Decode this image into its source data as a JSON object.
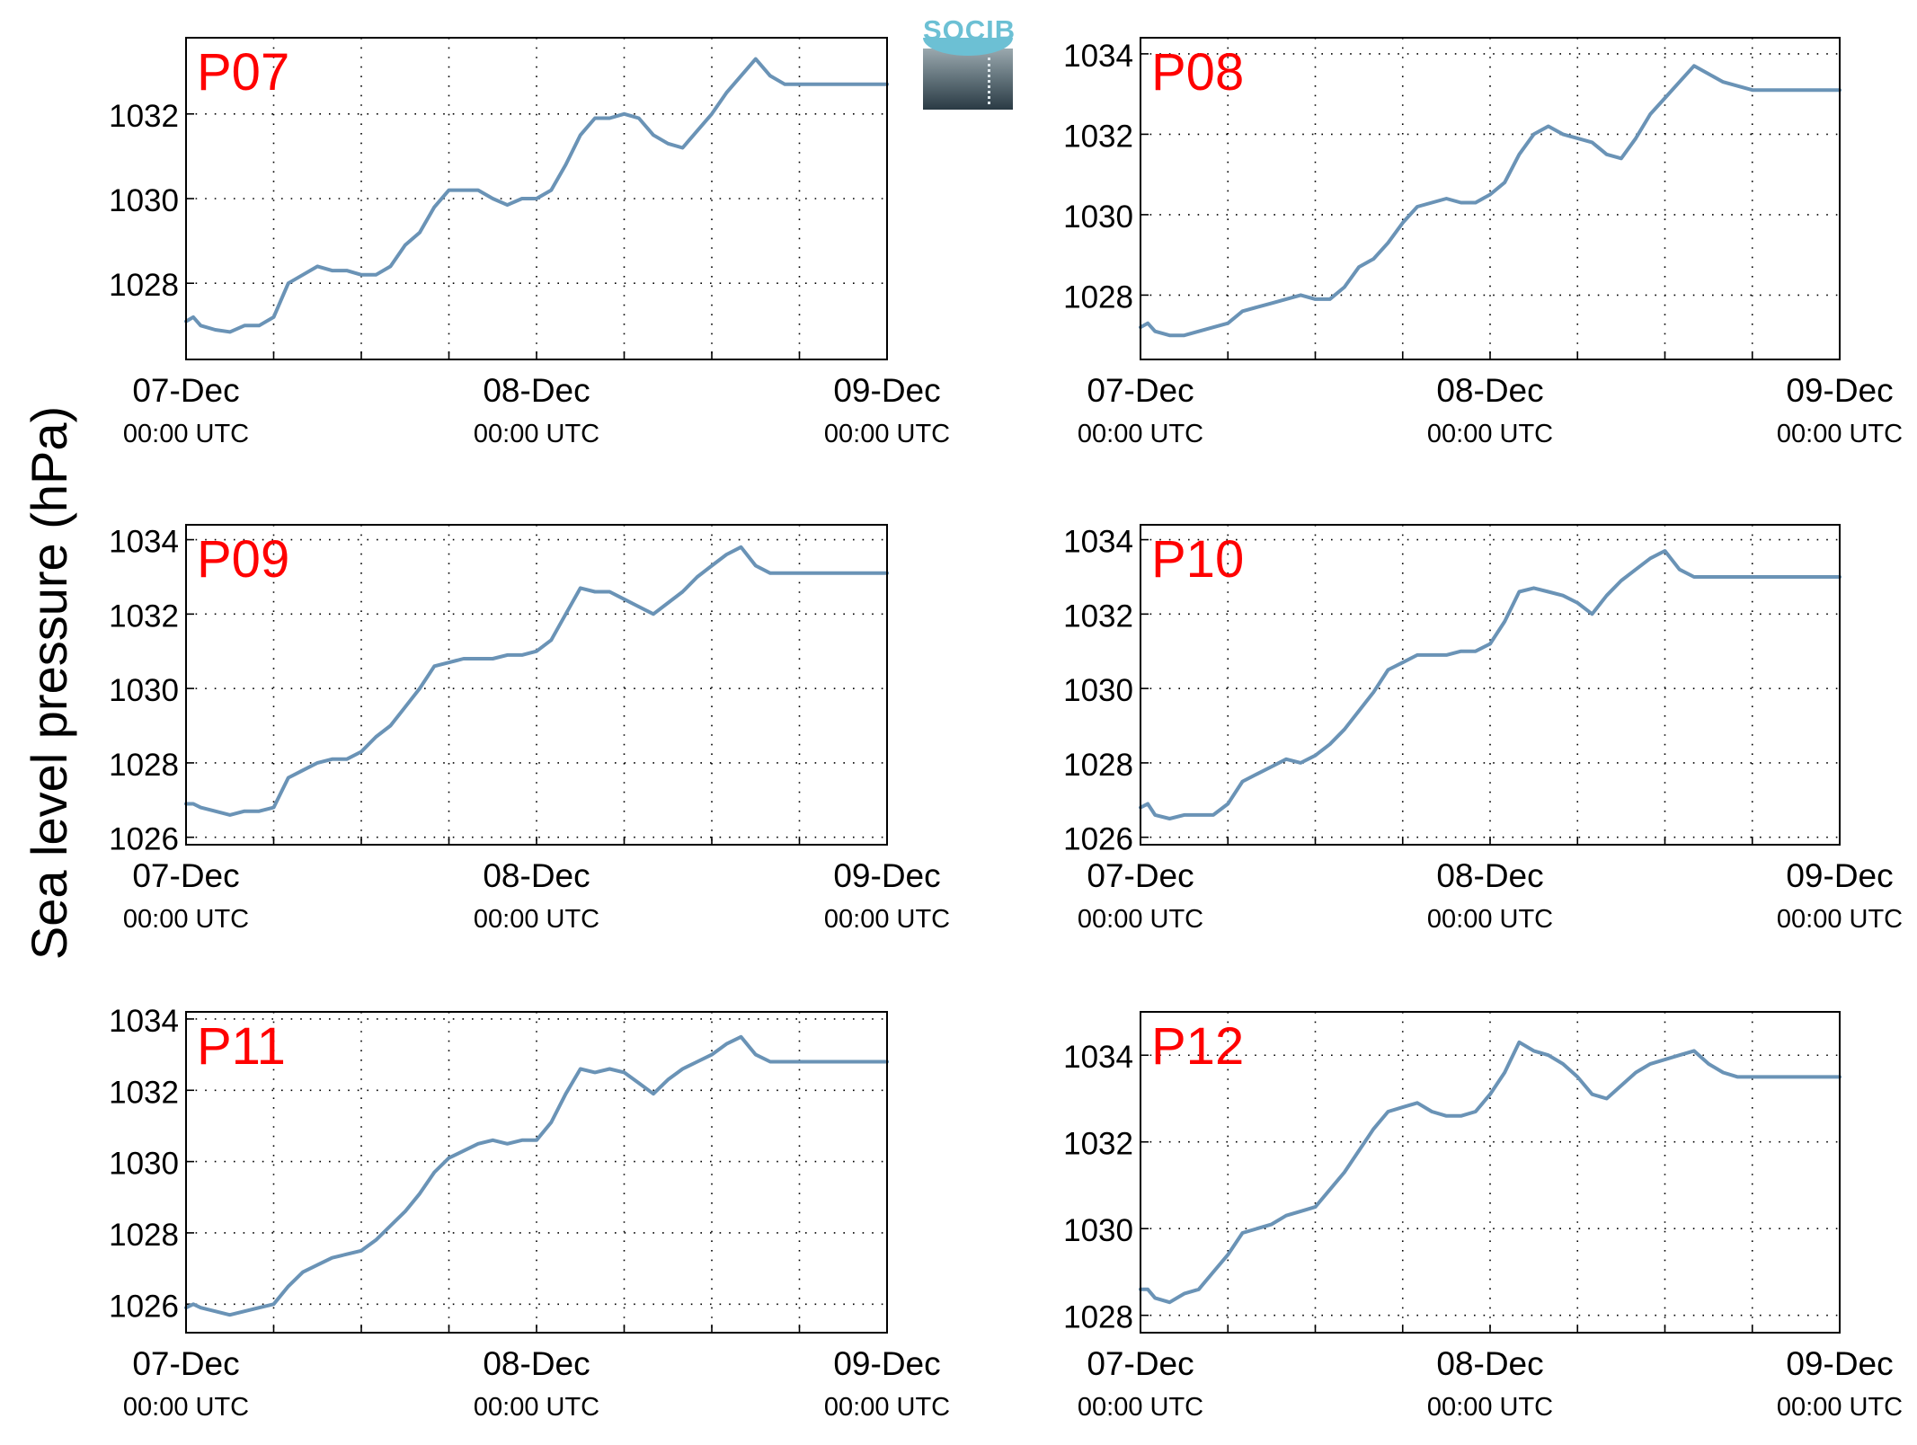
{
  "ylabel": "Sea level pressure (hPa)",
  "logo": {
    "text": "SOCIB"
  },
  "colors": {
    "line": "#6a93b6",
    "panel_label": "#ff0000",
    "grid": "#000000",
    "logo_accent": "#6cc0d4"
  },
  "chart_data": [
    {
      "type": "line",
      "name": "P07",
      "x_ticks": [
        {
          "top": "07-Dec",
          "bottom": "00:00 UTC"
        },
        {
          "top": "08-Dec",
          "bottom": "00:00 UTC"
        },
        {
          "top": "09-Dec",
          "bottom": "00:00 UTC"
        }
      ],
      "y_ticks": [
        1028,
        1030,
        1032
      ],
      "ylim": [
        1026.2,
        1033.8
      ],
      "x_range_hours": [
        0,
        48
      ],
      "grid": true,
      "hours": [
        0,
        0.5,
        1,
        2,
        3,
        4,
        5,
        6,
        7,
        8,
        9,
        10,
        11,
        12,
        13,
        14,
        15,
        16,
        17,
        18,
        19,
        20,
        21,
        22,
        23,
        24,
        25,
        26,
        27,
        28,
        29,
        30,
        31,
        32,
        33,
        34,
        35,
        36,
        37,
        38,
        39,
        40,
        41,
        42,
        43,
        44,
        45,
        46,
        47,
        48
      ],
      "values": [
        1027.1,
        1027.2,
        1027.0,
        1026.9,
        1026.85,
        1027.0,
        1027.0,
        1027.2,
        1028.0,
        1028.2,
        1028.4,
        1028.3,
        1028.3,
        1028.2,
        1028.2,
        1028.4,
        1028.9,
        1029.2,
        1029.8,
        1030.2,
        1030.2,
        1030.2,
        1030.0,
        1029.85,
        1030.0,
        1030.0,
        1030.2,
        1030.8,
        1031.5,
        1031.9,
        1031.9,
        1032.0,
        1031.9,
        1031.5,
        1031.3,
        1031.2,
        1031.6,
        1032.0,
        1032.5,
        1032.9,
        1033.3,
        1032.9,
        1032.7,
        1032.7,
        1032.7,
        1032.7,
        1032.7,
        1032.7,
        1032.7,
        1032.7
      ]
    },
    {
      "type": "line",
      "name": "P08",
      "x_ticks": [
        {
          "top": "07-Dec",
          "bottom": "00:00 UTC"
        },
        {
          "top": "08-Dec",
          "bottom": "00:00 UTC"
        },
        {
          "top": "09-Dec",
          "bottom": "00:00 UTC"
        }
      ],
      "y_ticks": [
        1028,
        1030,
        1032,
        1034
      ],
      "ylim": [
        1026.4,
        1034.4
      ],
      "x_range_hours": [
        0,
        48
      ],
      "grid": true,
      "hours": [
        0,
        0.5,
        1,
        2,
        3,
        4,
        5,
        6,
        7,
        8,
        9,
        10,
        11,
        12,
        13,
        14,
        15,
        16,
        17,
        18,
        19,
        20,
        21,
        22,
        23,
        24,
        25,
        26,
        27,
        28,
        29,
        30,
        31,
        32,
        33,
        34,
        35,
        36,
        37,
        38,
        39,
        40,
        41,
        42,
        43,
        44,
        45,
        46,
        47,
        48
      ],
      "values": [
        1027.2,
        1027.3,
        1027.1,
        1027.0,
        1027.0,
        1027.1,
        1027.2,
        1027.3,
        1027.6,
        1027.7,
        1027.8,
        1027.9,
        1028.0,
        1027.9,
        1027.9,
        1028.2,
        1028.7,
        1028.9,
        1029.3,
        1029.8,
        1030.2,
        1030.3,
        1030.4,
        1030.3,
        1030.3,
        1030.5,
        1030.8,
        1031.5,
        1032.0,
        1032.2,
        1032.0,
        1031.9,
        1031.8,
        1031.5,
        1031.4,
        1031.9,
        1032.5,
        1032.9,
        1033.3,
        1033.7,
        1033.5,
        1033.3,
        1033.2,
        1033.1,
        1033.1,
        1033.1,
        1033.1,
        1033.1,
        1033.1,
        1033.1
      ]
    },
    {
      "type": "line",
      "name": "P09",
      "x_ticks": [
        {
          "top": "07-Dec",
          "bottom": "00:00 UTC"
        },
        {
          "top": "08-Dec",
          "bottom": "00:00 UTC"
        },
        {
          "top": "09-Dec",
          "bottom": "00:00 UTC"
        }
      ],
      "y_ticks": [
        1026,
        1028,
        1030,
        1032,
        1034
      ],
      "ylim": [
        1025.8,
        1034.4
      ],
      "x_range_hours": [
        0,
        48
      ],
      "grid": true,
      "hours": [
        0,
        0.5,
        1,
        2,
        3,
        4,
        5,
        6,
        7,
        8,
        9,
        10,
        11,
        12,
        13,
        14,
        15,
        16,
        17,
        18,
        19,
        20,
        21,
        22,
        23,
        24,
        25,
        26,
        27,
        28,
        29,
        30,
        31,
        32,
        33,
        34,
        35,
        36,
        37,
        38,
        39,
        40,
        41,
        42,
        43,
        44,
        45,
        46,
        47,
        48
      ],
      "values": [
        1026.9,
        1026.9,
        1026.8,
        1026.7,
        1026.6,
        1026.7,
        1026.7,
        1026.8,
        1027.6,
        1027.8,
        1028.0,
        1028.1,
        1028.1,
        1028.3,
        1028.7,
        1029.0,
        1029.5,
        1030.0,
        1030.6,
        1030.7,
        1030.8,
        1030.8,
        1030.8,
        1030.9,
        1030.9,
        1031.0,
        1031.3,
        1032.0,
        1032.7,
        1032.6,
        1032.6,
        1032.4,
        1032.2,
        1032.0,
        1032.3,
        1032.6,
        1033.0,
        1033.3,
        1033.6,
        1033.8,
        1033.3,
        1033.1,
        1033.1,
        1033.1,
        1033.1,
        1033.1,
        1033.1,
        1033.1,
        1033.1,
        1033.1
      ]
    },
    {
      "type": "line",
      "name": "P10",
      "x_ticks": [
        {
          "top": "07-Dec",
          "bottom": "00:00 UTC"
        },
        {
          "top": "08-Dec",
          "bottom": "00:00 UTC"
        },
        {
          "top": "09-Dec",
          "bottom": "00:00 UTC"
        }
      ],
      "y_ticks": [
        1026,
        1028,
        1030,
        1032,
        1034
      ],
      "ylim": [
        1025.8,
        1034.4
      ],
      "x_range_hours": [
        0,
        48
      ],
      "grid": true,
      "hours": [
        0,
        0.5,
        1,
        2,
        3,
        4,
        5,
        6,
        7,
        8,
        9,
        10,
        11,
        12,
        13,
        14,
        15,
        16,
        17,
        18,
        19,
        20,
        21,
        22,
        23,
        24,
        25,
        26,
        27,
        28,
        29,
        30,
        31,
        32,
        33,
        34,
        35,
        36,
        37,
        38,
        39,
        40,
        41,
        42,
        43,
        44,
        45,
        46,
        47,
        48
      ],
      "values": [
        1026.8,
        1026.9,
        1026.6,
        1026.5,
        1026.6,
        1026.6,
        1026.6,
        1026.9,
        1027.5,
        1027.7,
        1027.9,
        1028.1,
        1028.0,
        1028.2,
        1028.5,
        1028.9,
        1029.4,
        1029.9,
        1030.5,
        1030.7,
        1030.9,
        1030.9,
        1030.9,
        1031.0,
        1031.0,
        1031.2,
        1031.8,
        1032.6,
        1032.7,
        1032.6,
        1032.5,
        1032.3,
        1032.0,
        1032.5,
        1032.9,
        1033.2,
        1033.5,
        1033.7,
        1033.2,
        1033.0,
        1033.0,
        1033.0,
        1033.0,
        1033.0,
        1033.0,
        1033.0,
        1033.0,
        1033.0,
        1033.0,
        1033.0
      ]
    },
    {
      "type": "line",
      "name": "P11",
      "x_ticks": [
        {
          "top": "07-Dec",
          "bottom": "00:00 UTC"
        },
        {
          "top": "08-Dec",
          "bottom": "00:00 UTC"
        },
        {
          "top": "09-Dec",
          "bottom": "00:00 UTC"
        }
      ],
      "y_ticks": [
        1026,
        1028,
        1030,
        1032,
        1034
      ],
      "ylim": [
        1025.2,
        1034.2
      ],
      "x_range_hours": [
        0,
        48
      ],
      "grid": true,
      "hours": [
        0,
        0.5,
        1,
        2,
        3,
        4,
        5,
        6,
        7,
        8,
        9,
        10,
        11,
        12,
        13,
        14,
        15,
        16,
        17,
        18,
        19,
        20,
        21,
        22,
        23,
        24,
        25,
        26,
        27,
        28,
        29,
        30,
        31,
        32,
        33,
        34,
        35,
        36,
        37,
        38,
        39,
        40,
        41,
        42,
        43,
        44,
        45,
        46,
        47,
        48
      ],
      "values": [
        1025.9,
        1026.0,
        1025.9,
        1025.8,
        1025.7,
        1025.8,
        1025.9,
        1026.0,
        1026.5,
        1026.9,
        1027.1,
        1027.3,
        1027.4,
        1027.5,
        1027.8,
        1028.2,
        1028.6,
        1029.1,
        1029.7,
        1030.1,
        1030.3,
        1030.5,
        1030.6,
        1030.5,
        1030.6,
        1030.6,
        1031.1,
        1031.9,
        1032.6,
        1032.5,
        1032.6,
        1032.5,
        1032.2,
        1031.9,
        1032.3,
        1032.6,
        1032.8,
        1033.0,
        1033.3,
        1033.5,
        1033.0,
        1032.8,
        1032.8,
        1032.8,
        1032.8,
        1032.8,
        1032.8,
        1032.8,
        1032.8,
        1032.8
      ]
    },
    {
      "type": "line",
      "name": "P12",
      "x_ticks": [
        {
          "top": "07-Dec",
          "bottom": "00:00 UTC"
        },
        {
          "top": "08-Dec",
          "bottom": "00:00 UTC"
        },
        {
          "top": "09-Dec",
          "bottom": "00:00 UTC"
        }
      ],
      "y_ticks": [
        1028,
        1030,
        1032,
        1034
      ],
      "ylim": [
        1027.6,
        1035.0
      ],
      "x_range_hours": [
        0,
        48
      ],
      "grid": true,
      "hours": [
        0,
        0.5,
        1,
        2,
        3,
        4,
        5,
        6,
        7,
        8,
        9,
        10,
        11,
        12,
        13,
        14,
        15,
        16,
        17,
        18,
        19,
        20,
        21,
        22,
        23,
        24,
        25,
        26,
        27,
        28,
        29,
        30,
        31,
        32,
        33,
        34,
        35,
        36,
        37,
        38,
        39,
        40,
        41,
        42,
        43,
        44,
        45,
        46,
        47,
        48
      ],
      "values": [
        1028.6,
        1028.6,
        1028.4,
        1028.3,
        1028.5,
        1028.6,
        1029.0,
        1029.4,
        1029.9,
        1030.0,
        1030.1,
        1030.3,
        1030.4,
        1030.5,
        1030.9,
        1031.3,
        1031.8,
        1032.3,
        1032.7,
        1032.8,
        1032.9,
        1032.7,
        1032.6,
        1032.6,
        1032.7,
        1033.1,
        1033.6,
        1034.3,
        1034.1,
        1034.0,
        1033.8,
        1033.5,
        1033.1,
        1033.0,
        1033.3,
        1033.6,
        1033.8,
        1033.9,
        1034.0,
        1034.1,
        1033.8,
        1033.6,
        1033.5,
        1033.5,
        1033.5,
        1033.5,
        1033.5,
        1033.5,
        1033.5,
        1033.5
      ]
    }
  ]
}
